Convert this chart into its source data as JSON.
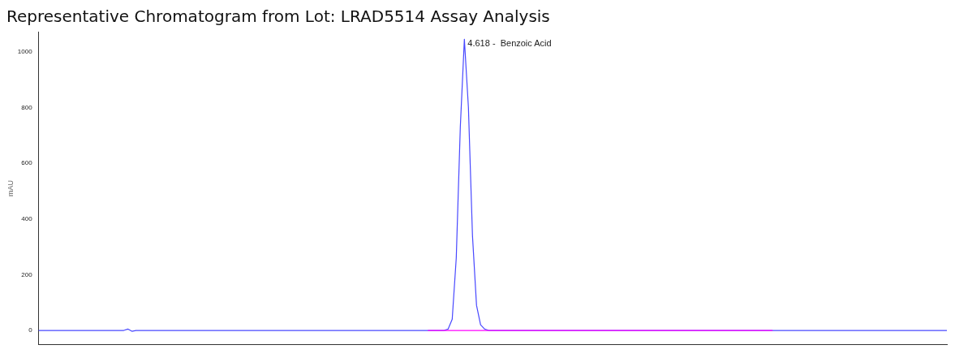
{
  "chart_data": {
    "type": "line",
    "title": "Representative Chromatogram from Lot: LRAD5514 Assay Analysis",
    "ylabel": "mAU",
    "categories": [
      null,
      null,
      null,
      null,
      null,
      null,
      null,
      null,
      null,
      null,
      null,
      null,
      null,
      null,
      null,
      null,
      null,
      null,
      null,
      null,
      null,
      null,
      null,
      null,
      null,
      null,
      null,
      null,
      null,
      null,
      null,
      null,
      null,
      null,
      null,
      null,
      null,
      null,
      null,
      null,
      null,
      null,
      null,
      null,
      null,
      null,
      null,
      null,
      null,
      null,
      null,
      null,
      null,
      null,
      null,
      null,
      null,
      null,
      null,
      null,
      null,
      null,
      null,
      null,
      null,
      null,
      null,
      null,
      null,
      null,
      null,
      null,
      null,
      null,
      null,
      null,
      null,
      null,
      null,
      null,
      null,
      null,
      null,
      null,
      null,
      null,
      null,
      null,
      null,
      null,
      null,
      null,
      null,
      null,
      null,
      null,
      null,
      null,
      null,
      null,
      null,
      null,
      null,
      null,
      null,
      null,
      null,
      null,
      null,
      null,
      null,
      null,
      null,
      null,
      null,
      null,
      null,
      null,
      null,
      null,
      null,
      null,
      null,
      null,
      null,
      null,
      null,
      null,
      null,
      null,
      null,
      null,
      null,
      null,
      null,
      null,
      null,
      null,
      null,
      null,
      null,
      null,
      null,
      null,
      null,
      null,
      null,
      null,
      null,
      null,
      null,
      null,
      null,
      null,
      null,
      null,
      null,
      null,
      null,
      null,
      null,
      null,
      null,
      null,
      null,
      null,
      null,
      null,
      null,
      null,
      null,
      null,
      null,
      null,
      null,
      null,
      null,
      null,
      null,
      null,
      null,
      null,
      null,
      null,
      null,
      null,
      null,
      null,
      null,
      null,
      null,
      null,
      null,
      null,
      null,
      null,
      null,
      null,
      null,
      null,
      null,
      null,
      null,
      null,
      null,
      null,
      null,
      null,
      null,
      null,
      null,
      null,
      null,
      null,
      null,
      null,
      null,
      null,
      null,
      null,
      null,
      null,
      null,
      null,
      null
    ],
    "series": [
      {
        "color": "#4848ff",
        "values": [
          0,
          0,
          0,
          0,
          0,
          0,
          0,
          0,
          0,
          0,
          0,
          0,
          0,
          0,
          0,
          0,
          0,
          0,
          0,
          0,
          0,
          0,
          5,
          -3,
          0,
          0,
          0,
          0,
          0,
          0,
          0,
          0,
          0,
          0,
          0,
          0,
          0,
          0,
          0,
          0,
          0,
          0,
          0,
          0,
          0,
          0,
          0,
          0,
          0,
          0,
          0,
          0,
          0,
          0,
          0,
          0,
          0,
          0,
          0,
          0,
          0,
          0,
          0,
          0,
          0,
          0,
          0,
          0,
          0,
          0,
          0,
          0,
          0,
          0,
          0,
          0,
          0,
          0,
          0,
          0,
          0,
          0,
          0,
          0,
          0,
          0,
          0,
          0,
          0,
          0,
          0,
          0,
          0,
          0,
          0,
          0,
          0,
          0,
          0,
          0,
          0,
          5,
          40,
          260,
          730,
          1045,
          800,
          340,
          90,
          20,
          5,
          0,
          0,
          0,
          0,
          0,
          0,
          0,
          0,
          0,
          0,
          0,
          0,
          0,
          0,
          0,
          0,
          0,
          0,
          0,
          0,
          0,
          0,
          0,
          0,
          0,
          0,
          0,
          0,
          0,
          0,
          0,
          0,
          0,
          0,
          0,
          0,
          0,
          0,
          0,
          0,
          0,
          0,
          0,
          0,
          0,
          0,
          0,
          0,
          0,
          0,
          0,
          0,
          0,
          0,
          0,
          0,
          0,
          0,
          0,
          0,
          0,
          0,
          0,
          0,
          0,
          0,
          0,
          0,
          0,
          0,
          0,
          0,
          0,
          0,
          0,
          0,
          0,
          0,
          0,
          0,
          0,
          0,
          0,
          0,
          0,
          0,
          0,
          0,
          0,
          0,
          0,
          0,
          0,
          0,
          0,
          0,
          0,
          0,
          0,
          0,
          0,
          0,
          0,
          0,
          0,
          0,
          0,
          0,
          0,
          0,
          0,
          0,
          0,
          0
        ]
      },
      {
        "color": "#ff00ff",
        "values": [
          null,
          null,
          null,
          null,
          null,
          null,
          null,
          null,
          null,
          null,
          null,
          null,
          null,
          null,
          null,
          null,
          null,
          null,
          null,
          null,
          null,
          null,
          null,
          null,
          null,
          null,
          null,
          null,
          null,
          null,
          null,
          null,
          null,
          null,
          null,
          null,
          null,
          null,
          null,
          null,
          null,
          null,
          null,
          null,
          null,
          null,
          null,
          null,
          null,
          null,
          null,
          null,
          null,
          null,
          null,
          null,
          null,
          null,
          null,
          null,
          null,
          null,
          null,
          null,
          null,
          null,
          null,
          null,
          null,
          null,
          null,
          null,
          null,
          null,
          null,
          null,
          null,
          null,
          null,
          null,
          null,
          null,
          null,
          null,
          null,
          null,
          null,
          null,
          null,
          null,
          null,
          null,
          null,
          null,
          null,
          null,
          0,
          0,
          0,
          0,
          0,
          0,
          0,
          0,
          0,
          0,
          0,
          0,
          0,
          0,
          0,
          0,
          0,
          0,
          0,
          0,
          0,
          0,
          0,
          0,
          0,
          0,
          0,
          0,
          0,
          0,
          0,
          0,
          0,
          0,
          0,
          0,
          0,
          0,
          0,
          0,
          0,
          0,
          0,
          0,
          0,
          0,
          0,
          0,
          0,
          0,
          0,
          0,
          0,
          0,
          0,
          0,
          0,
          0,
          0,
          0,
          0,
          0,
          0,
          0,
          0,
          0,
          0,
          0,
          0,
          0,
          0,
          0,
          0,
          0,
          0,
          0,
          0,
          0,
          0,
          0,
          0,
          0,
          0,
          0,
          0,
          0,
          null,
          null,
          null,
          null,
          null,
          null,
          null,
          null,
          null,
          null,
          null,
          null,
          null,
          null,
          null,
          null,
          null,
          null,
          null,
          null,
          null,
          null,
          null,
          null,
          null,
          null,
          null,
          null,
          null,
          null,
          null,
          null,
          null,
          null,
          null,
          null,
          null,
          null,
          null,
          null,
          null,
          null,
          null
        ]
      }
    ],
    "ylim": [
      -50,
      1070
    ],
    "yticks": [
      0,
      200,
      400,
      600,
      800,
      1000
    ],
    "annotations": [
      "4.618 -  Benzoic Acid"
    ],
    "grid": false,
    "legend": false,
    "marker": "none",
    "line_style": "solid",
    "tick_labels": "y"
  }
}
